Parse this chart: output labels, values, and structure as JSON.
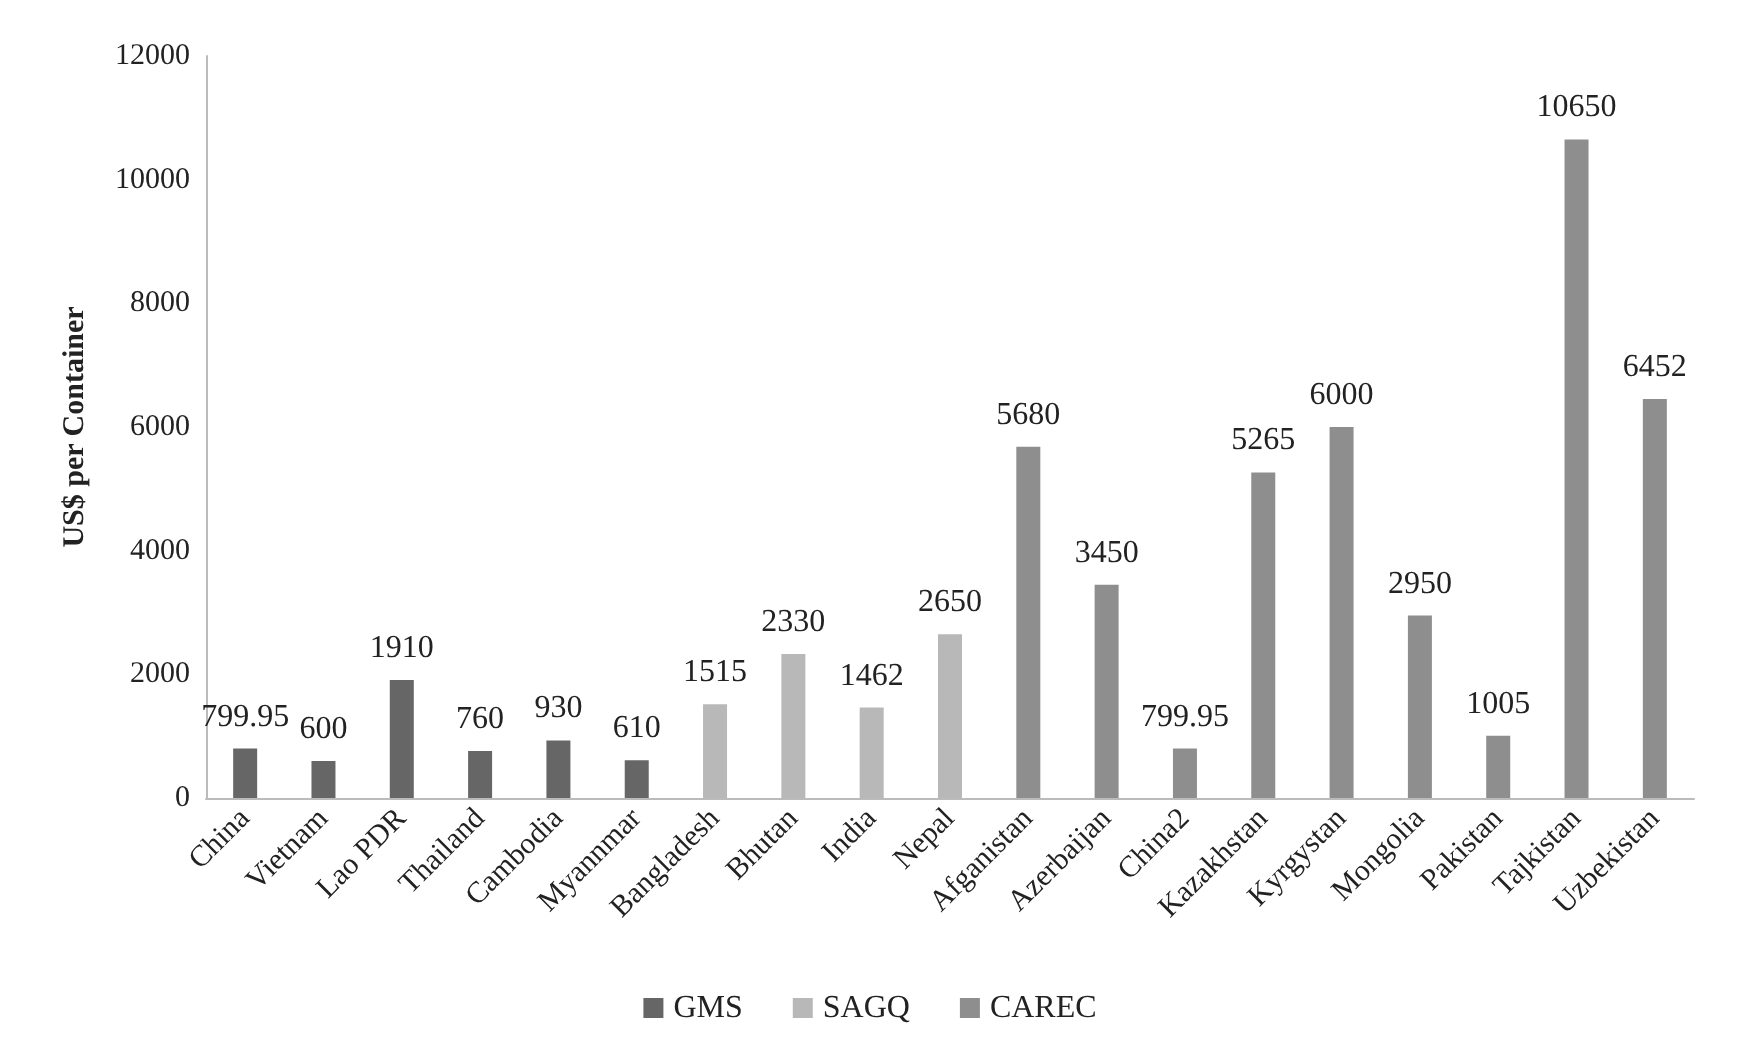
{
  "chart_data": {
    "type": "bar",
    "ylabel": "US$ per Container",
    "categories": [
      "China",
      "Vietnam",
      "Lao PDR",
      "Thailand",
      "Cambodia",
      "Myannmar",
      "Bangladesh",
      "Bhutan",
      "India",
      "Nepal",
      "Afganistan",
      "Azerbaijan",
      "China2",
      "Kazakhstan",
      "Kyrgystan",
      "Mongolia",
      "Pakistan",
      "Tajkistan",
      "Uzbekistan"
    ],
    "series": [
      {
        "name": "GMS",
        "color": "#666666",
        "values": [
          799.95,
          600,
          1910,
          760,
          930,
          610,
          null,
          null,
          null,
          null,
          null,
          null,
          null,
          null,
          null,
          null,
          null,
          null,
          null
        ]
      },
      {
        "name": "SAGQ",
        "color": "#b8b8b8",
        "values": [
          null,
          null,
          null,
          null,
          null,
          null,
          1515,
          2330,
          1462,
          2650,
          null,
          null,
          null,
          null,
          null,
          null,
          null,
          null,
          null
        ]
      },
      {
        "name": "CAREC",
        "color": "#8e8e8e",
        "values": [
          null,
          null,
          null,
          null,
          null,
          null,
          null,
          null,
          null,
          null,
          5680,
          3450,
          799.95,
          5265,
          6000,
          2950,
          1005,
          10650,
          6452
        ]
      }
    ],
    "ylim": [
      0,
      12000
    ],
    "yticks": [
      0,
      2000,
      4000,
      6000,
      8000,
      10000,
      12000
    ],
    "grid": false,
    "legend": "bottom",
    "data_labels": true
  }
}
